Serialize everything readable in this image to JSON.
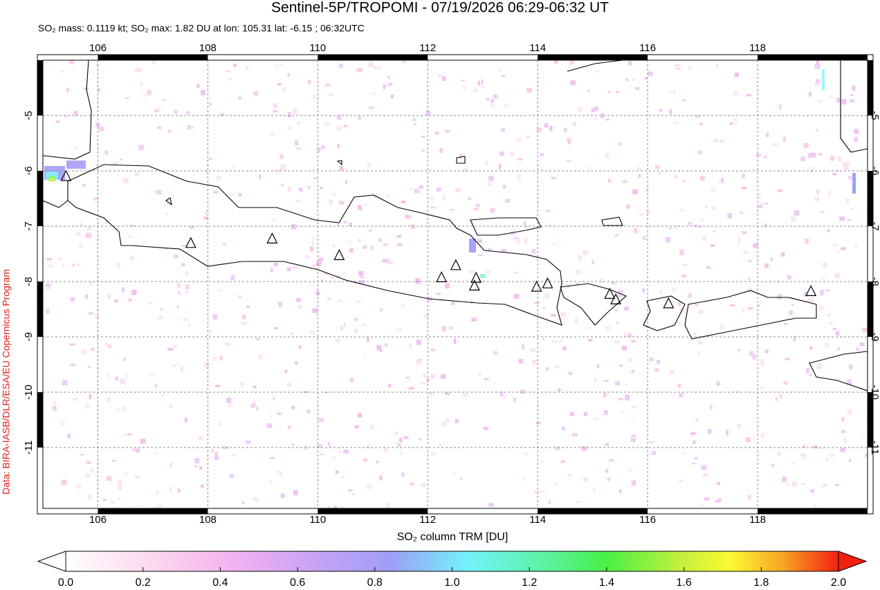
{
  "chart_data": {
    "type": "map",
    "title": "Sentinel-5P/TROPOMI - 07/19/2026 06:29-06:32 UT",
    "subtitle": "SO₂ mass: 0.1119 kt; SO₂ max: 1.82 DU at lon: 105.31 lat: -6.15 ; 06:32UTC",
    "credit": "Data: BIRA-IASB/DLR/ESA/EU Copernicus Program",
    "xlim": [
      105,
      120
    ],
    "ylim": [
      -12.1,
      -4
    ],
    "xticks": [
      106,
      108,
      110,
      112,
      114,
      116,
      118
    ],
    "yticks": [
      -5,
      -6,
      -7,
      -8,
      -9,
      -10,
      -11
    ],
    "grid": true,
    "volcanoes": {
      "lon": [
        105.42,
        107.69,
        109.17,
        110.39,
        112.25,
        112.51,
        112.88,
        112.85,
        113.98,
        114.18,
        115.31,
        115.42,
        116.38,
        118.97
      ],
      "lat": [
        -6.1,
        -7.31,
        -7.23,
        -7.53,
        -7.93,
        -7.71,
        -7.94,
        -8.08,
        -8.1,
        -8.04,
        -8.23,
        -8.33,
        -8.4,
        -8.18
      ]
    },
    "colorbar": {
      "label": "SO₂ column TRM [DU]",
      "lim": [
        0,
        2
      ],
      "ticks": [
        {
          "value": 0,
          "label": "0.0"
        },
        {
          "value": 0.2,
          "label": "0.2"
        },
        {
          "value": 0.4,
          "label": "0.4"
        },
        {
          "value": 0.6,
          "label": "0.6"
        },
        {
          "value": 0.8,
          "label": "0.8"
        },
        {
          "value": 1,
          "label": "1.0"
        },
        {
          "value": 1.2,
          "label": "1.2"
        },
        {
          "value": 1.4,
          "label": "1.4"
        },
        {
          "value": 1.6,
          "label": "1.6"
        },
        {
          "value": 1.8,
          "label": "1.8"
        },
        {
          "value": 2,
          "label": "2.0"
        }
      ]
    }
  }
}
